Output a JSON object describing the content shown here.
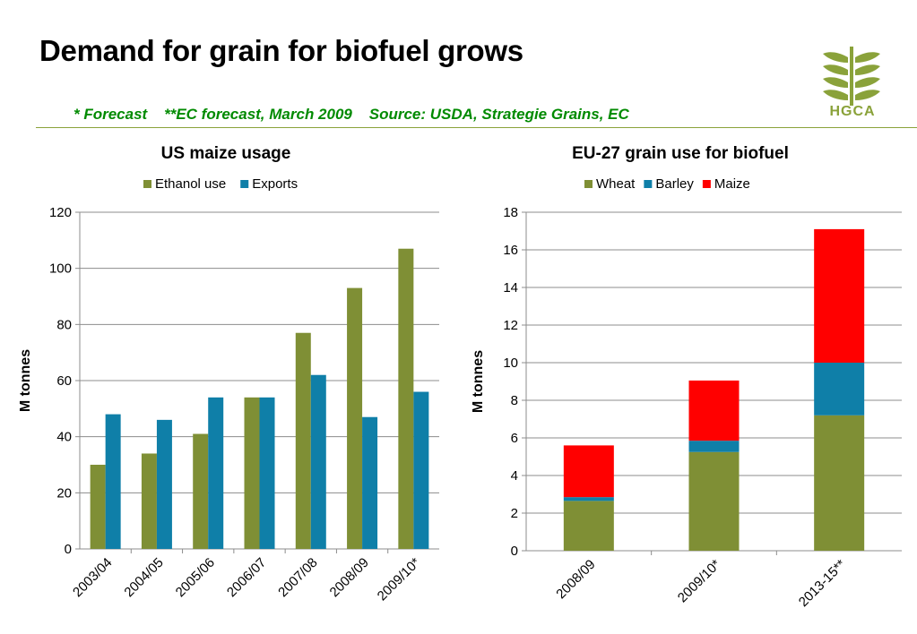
{
  "slide": {
    "title": "Demand for grain for biofuel grows",
    "note": "* Forecast    **EC forecast, March 2009    Source: USDA, Strategie Grains, EC",
    "logo_text": "HGCA",
    "logo_icon": "wheat-ears-icon"
  },
  "colors": {
    "olive": "#7f8f35",
    "teal": "#0f7fa8",
    "red": "#ff0000",
    "accent": "#008a00",
    "rule": "#8aa23a"
  },
  "chart_data": [
    {
      "type": "bar",
      "title": "US maize usage",
      "ylabel": "M tonnes",
      "xlabel": "",
      "ylim": [
        0,
        120
      ],
      "yticks": [
        0,
        20,
        40,
        60,
        80,
        100,
        120
      ],
      "grid": true,
      "legend": "top",
      "categories": [
        "2003/04",
        "2004/05",
        "2005/06",
        "2006/07",
        "2007/08",
        "2008/09",
        "2009/10*"
      ],
      "series": [
        {
          "name": "Ethanol use",
          "color": "#7f8f35",
          "values": [
            30,
            34,
            41,
            54,
            77,
            93,
            107
          ]
        },
        {
          "name": "Exports",
          "color": "#0f7fa8",
          "values": [
            48,
            46,
            54,
            54,
            62,
            47,
            56
          ]
        }
      ]
    },
    {
      "type": "bar",
      "stacked": true,
      "title": "EU-27 grain use for biofuel",
      "ylabel": "M tonnes",
      "xlabel": "",
      "ylim": [
        0,
        18
      ],
      "yticks": [
        0,
        2,
        4,
        6,
        8,
        10,
        12,
        14,
        16,
        18
      ],
      "grid": true,
      "legend": "top",
      "categories": [
        "2008/09",
        "2009/10*",
        "2013-15**"
      ],
      "series": [
        {
          "name": "Wheat",
          "color": "#7f8f35",
          "values": [
            2.65,
            5.25,
            7.2
          ]
        },
        {
          "name": "Barley",
          "color": "#0f7fa8",
          "values": [
            0.2,
            0.6,
            2.8
          ]
        },
        {
          "name": "Maize",
          "color": "#ff0000",
          "values": [
            2.75,
            3.2,
            7.1
          ]
        }
      ]
    }
  ]
}
